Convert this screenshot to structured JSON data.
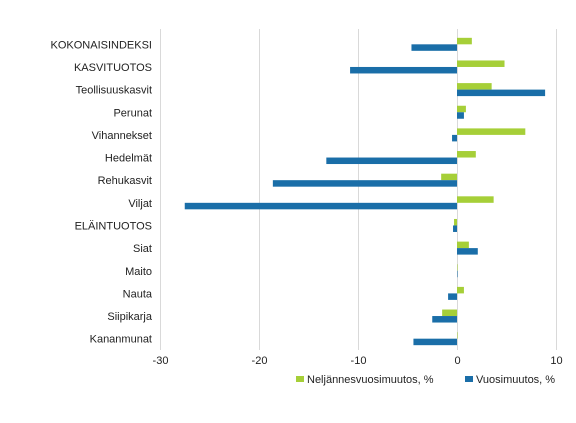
{
  "chart_data": {
    "type": "bar",
    "orientation": "horizontal",
    "categories": [
      "KOKONAISINDEKSI",
      "KASVITUOTOS",
      "Teollisuuskasvit",
      "Perunat",
      "Vihannekset",
      "Hedelmät",
      "Rehukasvit",
      "Viljat",
      "ELÄINTUOTOS",
      "Siat",
      "Maito",
      "Nauta",
      "Siipikarja",
      "Kananmunat"
    ],
    "series": [
      {
        "name": "Neljännesvuosimuutos, %",
        "color": "#a6cf38",
        "values": [
          1.5,
          4.8,
          3.5,
          0.9,
          6.9,
          1.9,
          -1.6,
          3.7,
          -0.3,
          1.2,
          0.0,
          0.7,
          -1.5,
          0.0
        ]
      },
      {
        "name": "Vuosimuutos, %",
        "color": "#1a6ea8",
        "values": [
          -4.6,
          -10.8,
          8.9,
          0.7,
          -0.5,
          -13.2,
          -18.6,
          -27.5,
          -0.4,
          2.1,
          0.0,
          -0.9,
          -2.5,
          -4.4
        ]
      }
    ],
    "x_ticks": [
      -30,
      -20,
      -10,
      0,
      10
    ],
    "xlim": [
      -30,
      10
    ],
    "grid": true,
    "legend_position": "bottom"
  }
}
